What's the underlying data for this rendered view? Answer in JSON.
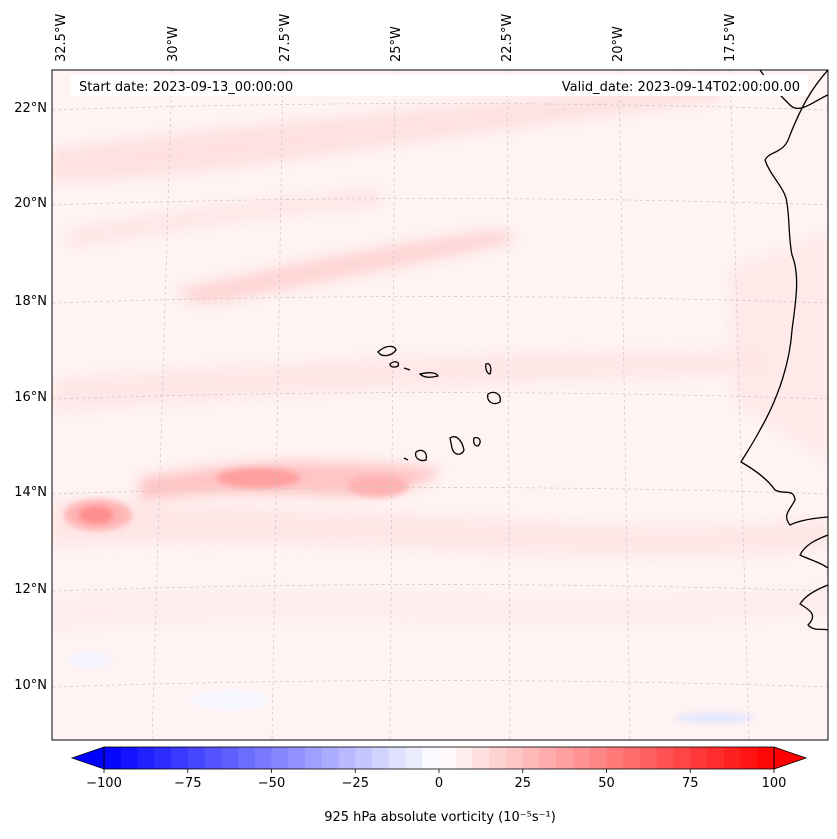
{
  "header": {
    "start_date": "Start date: 2023-09-13_00:00:00",
    "valid_date": "Valid_date: 2023-09-14T02:00:00.00"
  },
  "map": {
    "longitude_ticks": [
      "32.5°W",
      "30°W",
      "27.5°W",
      "25°W",
      "22.5°W",
      "20°W",
      "17.5°W"
    ],
    "latitude_ticks": [
      "22°N",
      "20°N",
      "18°N",
      "16°N",
      "14°N",
      "12°N",
      "10°N"
    ],
    "extent": {
      "lon_min": -32.5,
      "lon_max": -15.0,
      "lat_min": 8.9,
      "lat_max": 22.8
    }
  },
  "colorbar": {
    "label": "925 hPa absolute vorticity (10⁻⁵s⁻¹)",
    "ticks": [
      "−100",
      "−75",
      "−50",
      "−25",
      "0",
      "25",
      "50",
      "75",
      "100"
    ],
    "range": [
      -100,
      100
    ],
    "step": 5,
    "extend": "both",
    "colors": {
      "negative": "#0000ff",
      "zero": "#ffffff",
      "positive": "#ff0000"
    }
  },
  "colors": {
    "coastline": "#000000",
    "gridline": "#c8c8c8"
  }
}
